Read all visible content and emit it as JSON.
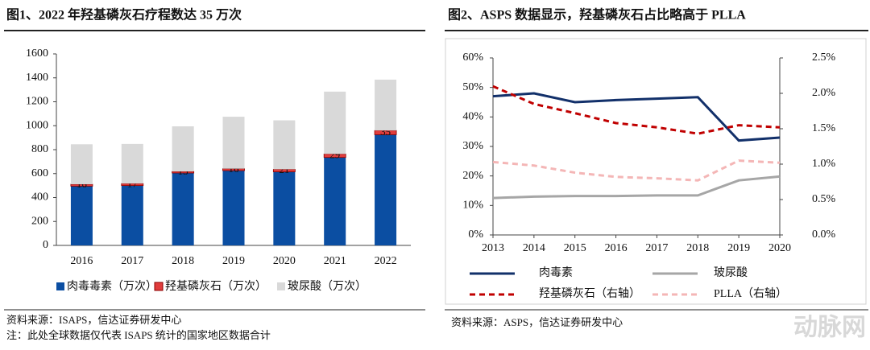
{
  "chart_data": [
    {
      "type": "stacked-bar",
      "title": "图1、2022 年羟基磷灰石疗程数达 35 万次",
      "categories": [
        "2016",
        "2017",
        "2018",
        "2019",
        "2020",
        "2021",
        "2022"
      ],
      "series": [
        {
          "name": "肉毒毒素（万次）",
          "color": "#0b4ea2",
          "values": [
            495,
            500,
            605,
            625,
            615,
            735,
            925
          ]
        },
        {
          "name": "羟基磷灰石（万次）",
          "color": "#e03c3c",
          "values": [
            16,
            17,
            13,
            16,
            21,
            29,
            35
          ],
          "labels": true
        },
        {
          "name": "玻尿酸（万次）",
          "color": "#d9d9d9",
          "values": [
            334,
            331,
            377,
            434,
            409,
            521,
            425
          ]
        }
      ],
      "ylim": [
        0,
        1600
      ],
      "yticks": [
        0,
        200,
        400,
        600,
        800,
        1000,
        1200,
        1400,
        1600
      ],
      "source": "资料来源：ISAPS，信达证券研发中心",
      "note": "注：此处全球数据仅代表 ISAPS 统计的国家地区数据合计"
    },
    {
      "type": "line",
      "title": "图2、ASPS 数据显示，羟基磷灰石占比略高于 PLLA",
      "x": [
        2013,
        2014,
        2015,
        2016,
        2017,
        2018,
        2019,
        2020
      ],
      "xlim": [
        2013,
        2020
      ],
      "xticks": [
        2013,
        2014,
        2015,
        2016,
        2017,
        2018,
        2019,
        2020
      ],
      "series": [
        {
          "name": "肉毒素",
          "color": "#12306a",
          "dash": false,
          "values": [
            47,
            48,
            45,
            45.7,
            46.2,
            46.7,
            32,
            33
          ]
        },
        {
          "name": "玻尿酸",
          "color": "#a6a6a6",
          "dash": false,
          "values": [
            12.5,
            13,
            13.2,
            13.2,
            13.4,
            13.4,
            18.5,
            19.8
          ]
        },
        {
          "name": "羟基磷灰石（右轴）",
          "color": "#c00000",
          "dash": true,
          "axis": "y2",
          "values": [
            2.1,
            1.85,
            1.72,
            1.58,
            1.52,
            1.43,
            1.55,
            1.52
          ]
        },
        {
          "name": "PLLA（右轴）",
          "color": "#f4b6b6",
          "dash": true,
          "axis": "y2",
          "values": [
            1.03,
            0.98,
            0.88,
            0.82,
            0.8,
            0.77,
            1.05,
            1.02
          ]
        }
      ],
      "ylim": [
        0,
        60
      ],
      "yticks": [
        {
          "value": 0,
          "label": "0%"
        },
        {
          "value": 10,
          "label": "10%"
        },
        {
          "value": 20,
          "label": "20%"
        },
        {
          "value": 30,
          "label": "30%"
        },
        {
          "value": 40,
          "label": "40%"
        },
        {
          "value": 50,
          "label": "50%"
        },
        {
          "value": 60,
          "label": "60%"
        }
      ],
      "y2lim": [
        0,
        2.5
      ],
      "y2ticks": [
        {
          "value": 0,
          "label": "0.0%"
        },
        {
          "value": 0.5,
          "label": "0.5%"
        },
        {
          "value": 1,
          "label": "1.0%"
        },
        {
          "value": 1.5,
          "label": "1.5%"
        },
        {
          "value": 2,
          "label": "2.0%"
        },
        {
          "value": 2.5,
          "label": "2.5%"
        }
      ],
      "source": "资料来源：ASPS，信达证券研发中心"
    }
  ],
  "watermark": "动脉网"
}
